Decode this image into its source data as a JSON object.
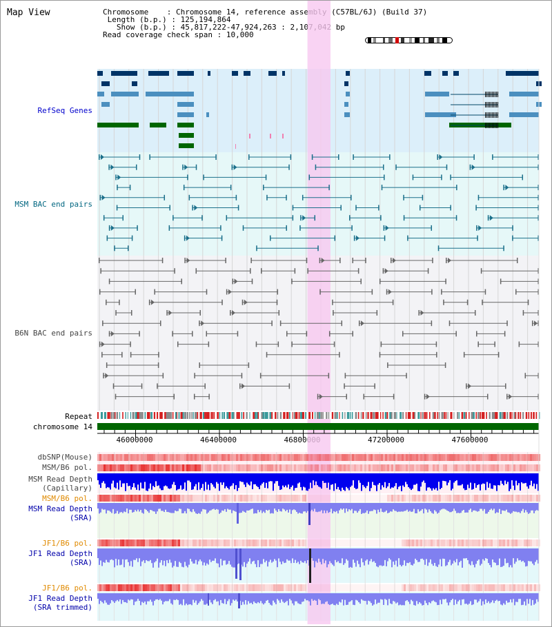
{
  "title": "Map View",
  "info": {
    "chromosome_key": "Chromosome",
    "chromosome_val": "Chromosome 14, reference assembly (C57BL/6J) (Build 37)",
    "length_key": "Length (b.p.)",
    "length_val": "125,194,864",
    "show_key": "Show (b.p.)",
    "show_val": "45,817,222-47,924,263 : 2,107,042 bp",
    "coverage_key": "Read coverage check span",
    "coverage_val": "10,000"
  },
  "tracks": {
    "refseq": "RefSeq Genes",
    "msm_bac": "MSM BAC end pairs",
    "b6n_bac": "B6N BAC end pairs",
    "repeat": "Repeat",
    "chromosome": "chromosome 14",
    "dbsnp": "dbSNP(Mouse)",
    "msm_b6_pol_1": "MSM/B6 pol.",
    "msm_read_depth_cap_1": "MSM Read Depth",
    "msm_read_depth_cap_2": "(Capillary)",
    "msm_b6_pol_2": "MSM/B6 pol.",
    "msm_read_depth_sra_1": "MSM Read Depth",
    "msm_read_depth_sra_2": "(SRA)",
    "jf1_b6_pol_1": "JF1/B6 pol.",
    "jf1_read_depth_sra_1": "JF1 Read Depth",
    "jf1_read_depth_sra_2": "(SRA)",
    "jf1_b6_pol_2": "JF1/B6 pol.",
    "jf1_read_depth_trim_1": "JF1 Read Depth",
    "jf1_read_depth_trim_2": "(SRA trimmed)"
  },
  "axis": {
    "tick_labels": [
      "46000000",
      "46400000",
      "46800000",
      "47200000",
      "47600000"
    ],
    "tick_values": [
      46000000,
      46400000,
      46800000,
      47200000,
      47600000
    ],
    "view_start": 45817222,
    "view_end": 47924263
  },
  "highlight": {
    "start": 46820000,
    "end": 46930000,
    "color": "#f7c8f0"
  },
  "colors": {
    "refseq_dark": "#003366",
    "refseq_mid": "#4b8fbf",
    "refseq_green": "#006600",
    "msm_pair": "#1a6f8a",
    "b6n_pair": "#666666",
    "depth_blue": "#0000ee",
    "depth_lavender": "#8080f0",
    "pol_red": "#e83030",
    "chromosome_green": "#006600"
  }
}
